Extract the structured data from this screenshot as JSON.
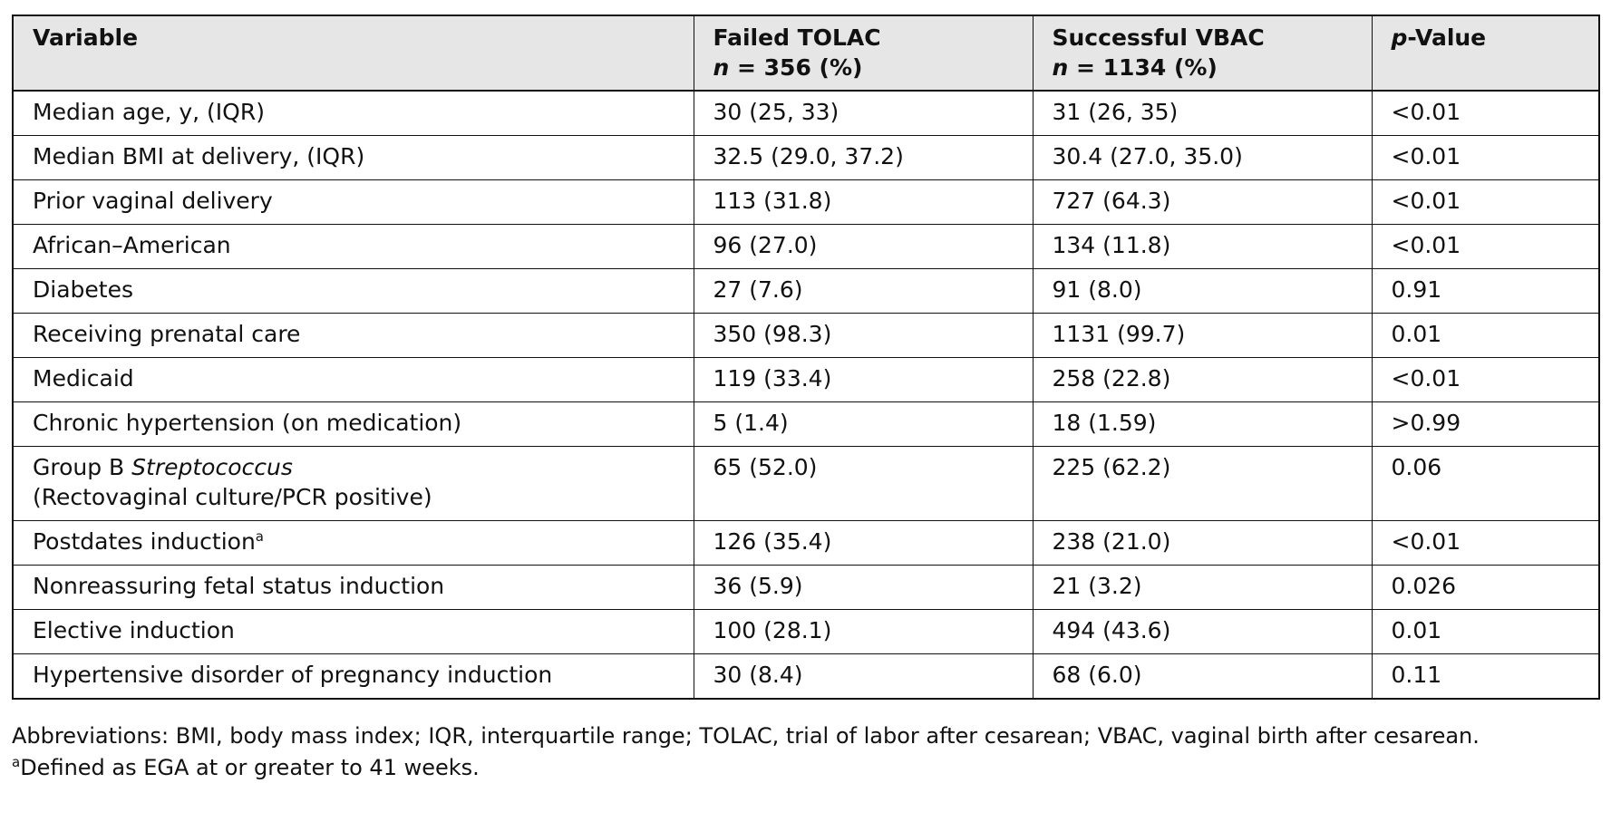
{
  "table": {
    "headers": {
      "variable": "Variable",
      "failed_title": "Failed TOLAC",
      "failed_n_label": "n",
      "failed_n_value": " = 356 (%)",
      "success_title": "Successful VBAC",
      "success_n_label": "n",
      "success_n_value": " = 1134 (%)",
      "pvalue_italic": "p",
      "pvalue_rest": "-Value"
    },
    "rows": [
      {
        "variable": "Median age, y, (IQR)",
        "failed": "30 (25, 33)",
        "success": "31 (26, 35)",
        "p": "<0.01"
      },
      {
        "variable": "Median BMI at delivery, (IQR)",
        "failed": "32.5 (29.0, 37.2)",
        "success": "30.4 (27.0, 35.0)",
        "p": "<0.01"
      },
      {
        "variable": "Prior vaginal delivery",
        "failed": "113 (31.8)",
        "success": "727 (64.3)",
        "p": "<0.01"
      },
      {
        "variable": "African–American",
        "failed": "96 (27.0)",
        "success": "134 (11.8)",
        "p": "<0.01"
      },
      {
        "variable": "Diabetes",
        "failed": "27 (7.6)",
        "success": "91 (8.0)",
        "p": "0.91"
      },
      {
        "variable": "Receiving prenatal care",
        "failed": "350 (98.3)",
        "success": "1131 (99.7)",
        "p": "0.01"
      },
      {
        "variable": "Medicaid",
        "failed": "119 (33.4)",
        "success": "258 (22.8)",
        "p": "<0.01"
      },
      {
        "variable": "Chronic hypertension (on medication)",
        "failed": "5 (1.4)",
        "success": "18 (1.59)",
        "p": ">0.99"
      },
      {
        "variable_prefix": "Group B ",
        "variable_italic": "Streptococcus",
        "variable_line2": "(Rectovaginal culture/PCR positive)",
        "failed": "65 (52.0)",
        "success": "225 (62.2)",
        "p": "0.06"
      },
      {
        "variable": "Postdates induction",
        "variable_sup": "a",
        "failed": "126 (35.4)",
        "success": "238 (21.0)",
        "p": "<0.01"
      },
      {
        "variable": "Nonreassuring fetal status induction",
        "failed": "36 (5.9)",
        "success": "21 (3.2)",
        "p": "0.026"
      },
      {
        "variable": "Elective induction",
        "failed": "100 (28.1)",
        "success": "494 (43.6)",
        "p": "0.01"
      },
      {
        "variable": "Hypertensive disorder of pregnancy induction",
        "failed": "30 (8.4)",
        "success": "68 (6.0)",
        "p": "0.11"
      }
    ]
  },
  "footnotes": {
    "abbreviations": "Abbreviations: BMI, body mass index; IQR, interquartile range; TOLAC, trial of labor after cesarean; VBAC, vaginal birth after cesarean.",
    "a_marker": "a",
    "a_text": "Defined as EGA at or greater to 41 weeks."
  }
}
